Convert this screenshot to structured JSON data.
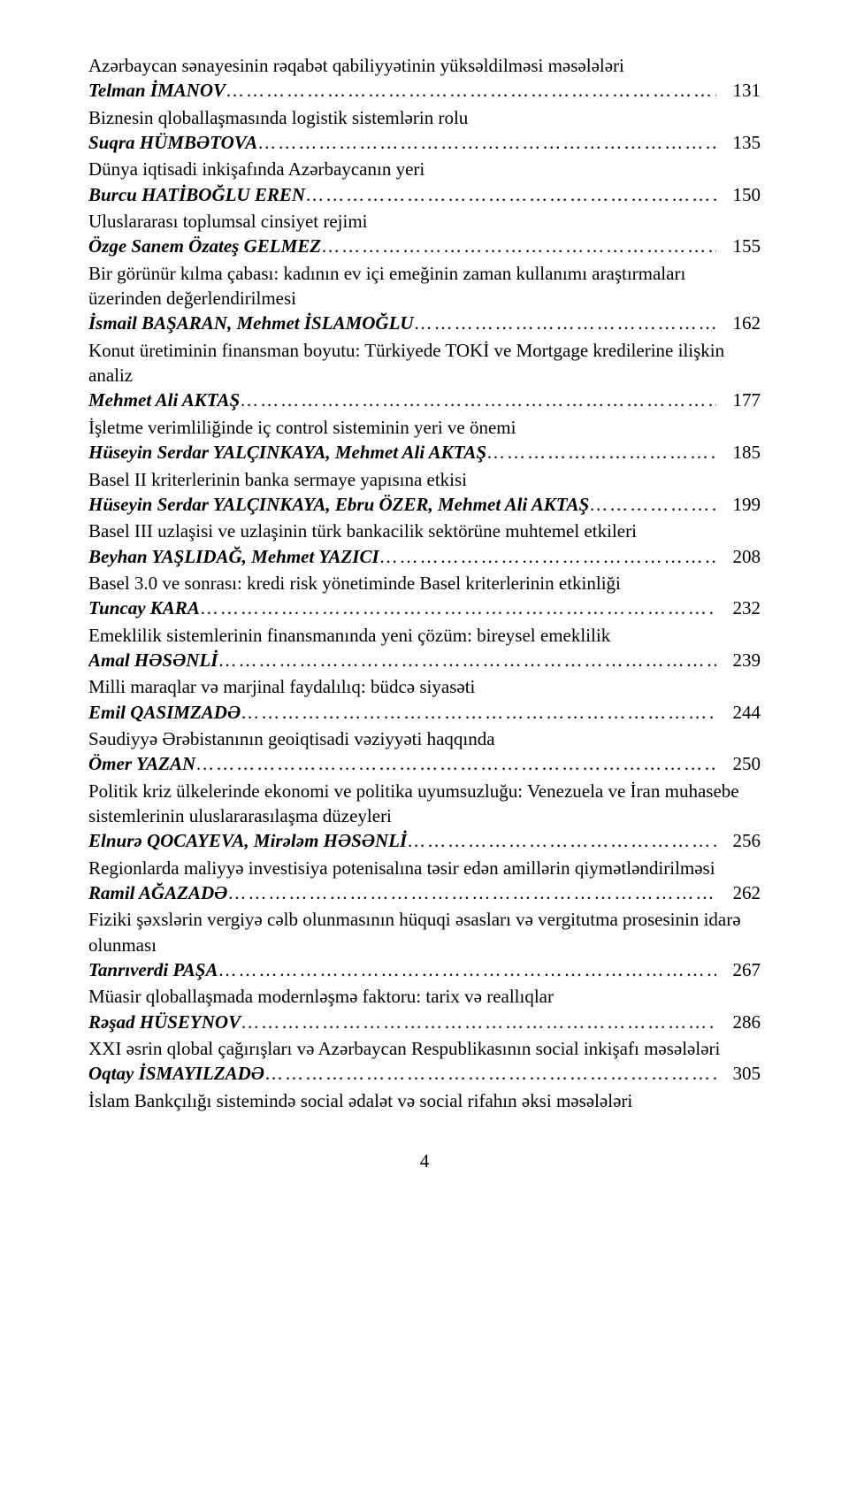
{
  "font_family": "Times New Roman",
  "font_size_pt": 16,
  "text_color": "#000000",
  "background_color": "#ffffff",
  "page_number": "4",
  "entries": [
    {
      "title": "Azərbaycan sənayesinin rəqabət qabiliyyətinin yüksəldilməsi məsələləri",
      "author": "Telman İMANOV",
      "page": "131"
    },
    {
      "title": "Biznesin qloballaşmasında logistik sistemlərin rolu",
      "author": "Suqra HÜMBƏTOVA",
      "page": "135"
    },
    {
      "title": "Dünya iqtisadi inkişafında Azərbaycanın yeri",
      "author": "Burcu HATİBOĞLU EREN",
      "page": "150"
    },
    {
      "title": "Uluslararası toplumsal cinsiyet rejimi",
      "author": "Özge Sanem Özateş GELMEZ",
      "page": "155"
    },
    {
      "title": "Bir görünür kılma çabası: kadının ev içi emeğinin zaman kullanımı araştırmaları üzerinden değerlendirilmesi",
      "author": "İsmail BAŞARAN, Mehmet İSLAMOĞLU",
      "page": "162"
    },
    {
      "title": "Konut üretiminin finansman boyutu: Türkiyede TOKİ ve Mortgage kredilerine ilişkin analiz",
      "author": "Mehmet Ali AKTAŞ",
      "page": "177"
    },
    {
      "title": "İşletme verimliliğinde iç control sisteminin yeri ve önemi",
      "author": "Hüseyin Serdar YALÇINKAYA, Mehmet Ali AKTAŞ",
      "page": "185"
    },
    {
      "title": "Basel II kriterlerinin banka sermaye yapısına etkisi",
      "author": "Hüseyin Serdar YALÇINKAYA, Ebru ÖZER, Mehmet Ali AKTAŞ",
      "page": "199"
    },
    {
      "title": "Basel III uzlaşisi ve uzlaşinin türk bankacilik sektörüne muhtemel etkileri",
      "author": "Beyhan YAŞLIDAĞ, Mehmet YAZICI",
      "page": "208"
    },
    {
      "title": "Basel 3.0 ve sonrası: kredi risk yönetiminde Basel kriterlerinin etkinliği",
      "author": "Tuncay KARA",
      "page": "232"
    },
    {
      "title": "Emeklilik sistemlerinin finansmanında yeni çözüm: bireysel emeklilik",
      "author": "Amal HƏSƏNLİ",
      "page": "239"
    },
    {
      "title": "Milli maraqlar və marjinal faydalılıq: büdcə siyasəti",
      "author": "Emil QASIMZADƏ",
      "page": "244"
    },
    {
      "title": "Səudiyyə Ərəbistanının geoiqtisadi vəziyyəti haqqında",
      "author": "Ömer YAZAN",
      "page": "250"
    },
    {
      "title": "Politik kriz ülkelerinde ekonomi ve politika uyumsuzluğu: Venezuela ve İran muhasebe sistemlerinin uluslararasılaşma düzeyleri",
      "author": "Elnurə QOCAYEVA, Mirələm HƏSƏNLİ",
      "page": "256"
    },
    {
      "title": "Regionlarda maliyyə investisiya potenisalına təsir edən amillərin qiymətləndirilməsi",
      "author": "Ramil AĞAZADƏ",
      "page": "262"
    },
    {
      "title": "Fiziki şəxslərin vergiyə cəlb olunmasının hüquqi əsasları və vergitutma prosesinin idarə olunması",
      "author": "Tanrıverdi PAŞA",
      "page": "267"
    },
    {
      "title": "Müasir qloballaşmada modernləşmə faktoru: tarix və reallıqlar",
      "author": "Rəşad HÜSEYNOV",
      "page": "286"
    },
    {
      "title": "XXI əsrin qlobal çağırışları və Azərbaycan Respublikasının social inkişafı məsələləri",
      "author": "Oqtay İSMAYILZADƏ",
      "page": "305"
    }
  ],
  "last_line": "İslam Bankçılığı sistemində social ədalət və social rifahın əksi məsələləri"
}
